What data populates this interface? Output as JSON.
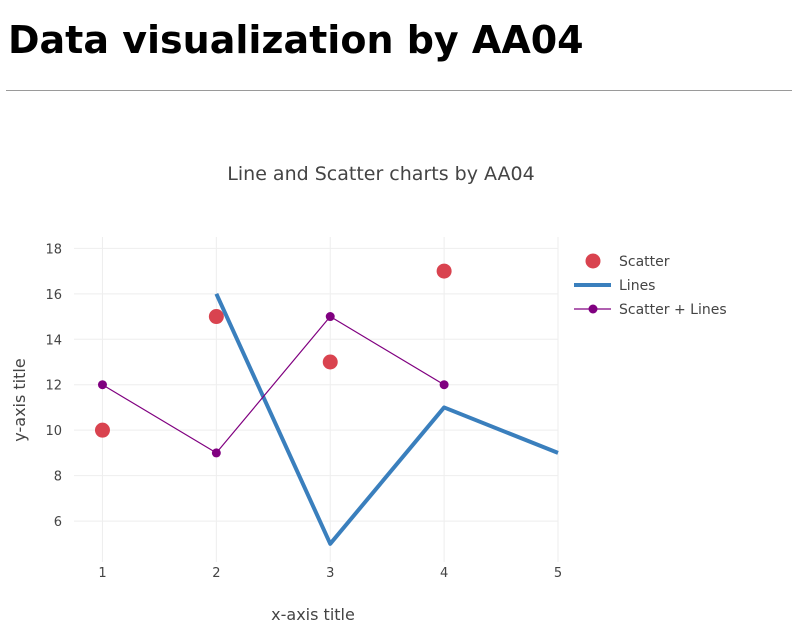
{
  "page": {
    "heading": "Data visualization by AA04"
  },
  "chart_data": {
    "type": "line",
    "title": "Line and Scatter charts by AA04",
    "xlabel": "x-axis title",
    "ylabel": "y-axis title",
    "xlim": [
      0.75,
      5
    ],
    "ylim": [
      4.2,
      18.5
    ],
    "xticks": [
      1,
      2,
      3,
      4,
      5
    ],
    "yticks": [
      6,
      8,
      10,
      12,
      14,
      16,
      18
    ],
    "grid": true,
    "legend_position": "right",
    "series": [
      {
        "name": "Scatter",
        "mode": "markers",
        "color": "#d9434f",
        "x": [
          1,
          2,
          3,
          4
        ],
        "y": [
          10,
          15,
          13,
          17
        ]
      },
      {
        "name": "Lines",
        "mode": "lines",
        "color": "#3a7fbd",
        "x": [
          2,
          3,
          4,
          5
        ],
        "y": [
          16,
          5,
          11,
          9
        ]
      },
      {
        "name": "Scatter + Lines",
        "mode": "lines+markers",
        "color": "#800080",
        "x": [
          1,
          2,
          3,
          4
        ],
        "y": [
          12,
          9,
          15,
          12
        ]
      }
    ]
  }
}
